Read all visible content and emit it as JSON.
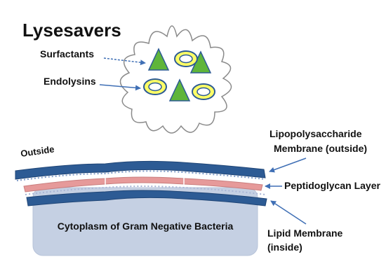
{
  "title": "Lysesavers",
  "labels": {
    "surfactants": "Surfactants",
    "endolysins": "Endolysins",
    "outside": "Outside",
    "lps_line1": "Lipopolysaccharide",
    "lps_line2": "Membrane (outside)",
    "peptidoglycan": "Peptidoglycan Layer",
    "lipid_line1": "Lipid Membrane",
    "lipid_line2": "(inside)",
    "cytoplasm": "Cytoplasm of Gram Negative Bacteria"
  },
  "colors": {
    "arrow": "#3f6fb5",
    "triangle_fill": "#5fb53a",
    "ring_fill": "#ffff66",
    "ring_stroke": "#2d5b94",
    "lps": "#2d5b94",
    "peptidoglycan": "#e69a9a",
    "cytoplasm": "#c5d0e3"
  }
}
